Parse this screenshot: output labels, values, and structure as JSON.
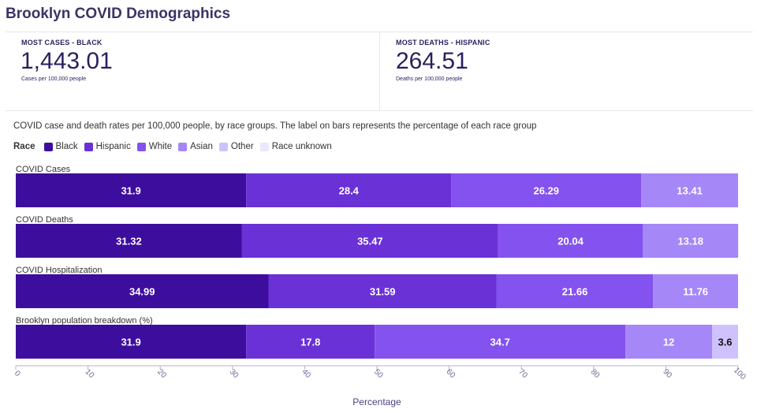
{
  "title": "Brooklyn COVID Demographics",
  "kpis": [
    {
      "label": "MOST CASES - BLACK",
      "value": "1,443.01",
      "sub": "Cases per 100,000 people"
    },
    {
      "label": "MOST DEATHS - HISPANIC",
      "value": "264.51",
      "sub": "Deaths per 100,000 people"
    }
  ],
  "description": "COVID case and death rates per 100,000 people, by race groups. The label on bars represents the percentage of each race group",
  "legend": {
    "title": "Race",
    "items": [
      {
        "label": "Black",
        "color": "#3d0d9e"
      },
      {
        "label": "Hispanic",
        "color": "#6a31d6"
      },
      {
        "label": "White",
        "color": "#8452ee"
      },
      {
        "label": "Asian",
        "color": "#a587f8"
      },
      {
        "label": "Other",
        "color": "#cfc2fc"
      },
      {
        "label": "Race unknown",
        "color": "#ece7fd"
      }
    ]
  },
  "chart_data": {
    "type": "bar",
    "orientation": "horizontal",
    "stacked": true,
    "categories": [
      "COVID Cases",
      "COVID Deaths",
      "COVID Hospitalization",
      "Brooklyn population breakdown (%)"
    ],
    "series": [
      {
        "name": "Black",
        "values": [
          31.9,
          31.32,
          34.99,
          31.9
        ]
      },
      {
        "name": "Hispanic",
        "values": [
          28.4,
          35.47,
          31.59,
          17.8
        ]
      },
      {
        "name": "White",
        "values": [
          26.29,
          20.04,
          21.66,
          34.7
        ]
      },
      {
        "name": "Asian",
        "values": [
          13.41,
          13.18,
          11.76,
          12
        ]
      },
      {
        "name": "Other",
        "values": [
          0,
          0,
          0,
          3.6
        ]
      },
      {
        "name": "Race unknown",
        "values": [
          0,
          0,
          0,
          0
        ]
      }
    ],
    "xlabel": "Percentage",
    "xlim": [
      0,
      100
    ],
    "xticks": [
      "0",
      "10",
      "20",
      "30",
      "40",
      "50",
      "60",
      "70",
      "80",
      "90",
      "100"
    ],
    "legend_position": "top-left",
    "grid": false
  }
}
